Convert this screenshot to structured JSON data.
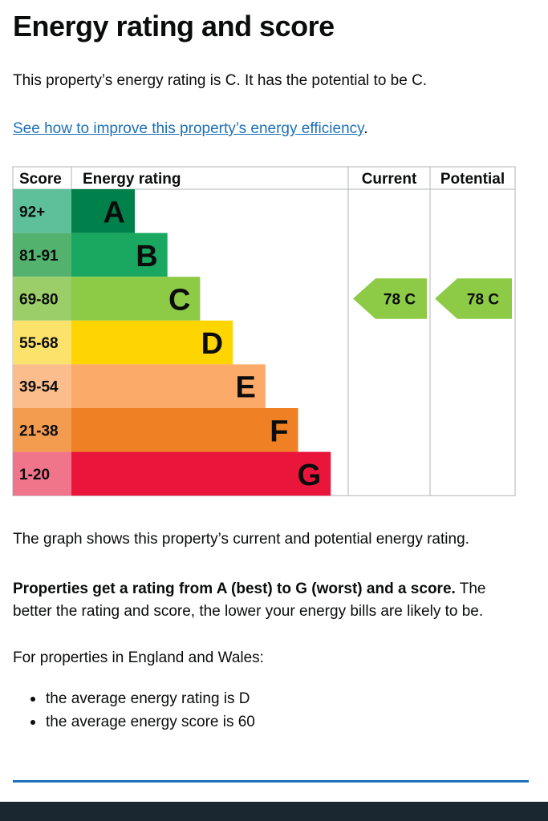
{
  "page": {
    "title": "Energy rating and score",
    "intro": "This property’s energy rating is C. It has the potential to be C.",
    "improve_link": "See how to improve this property’s energy efficiency",
    "improve_suffix": ".",
    "graph_note": "The graph shows this property’s current and potential energy rating.",
    "ratings_bold": "Properties get a rating from A (best) to G (worst) and a score.",
    "ratings_rest": " The better the rating and score, the lower your energy bills are likely to be.",
    "region_note": "For properties in England and Wales:",
    "averages": [
      "the average energy rating is D",
      "the average energy score is 60"
    ]
  },
  "chart_data": {
    "type": "bar",
    "headers": [
      "Score",
      "Energy rating",
      "Current",
      "Potential"
    ],
    "bands": [
      {
        "letter": "A",
        "range": "92+",
        "color": "#00804b",
        "score_color": "#5dc09a"
      },
      {
        "letter": "B",
        "range": "81-91",
        "color": "#1aa860",
        "score_color": "#52b26e"
      },
      {
        "letter": "C",
        "range": "69-80",
        "color": "#8dcb47",
        "score_color": "#9bce68"
      },
      {
        "letter": "D",
        "range": "55-68",
        "color": "#ffd500",
        "score_color": "#fbe26b"
      },
      {
        "letter": "E",
        "range": "39-54",
        "color": "#fbaa6a",
        "score_color": "#fcbd8c"
      },
      {
        "letter": "F",
        "range": "21-38",
        "color": "#ef8023",
        "score_color": "#f39b4f"
      },
      {
        "letter": "G",
        "range": "1-20",
        "color": "#e9153b",
        "score_color": "#f1758a"
      }
    ],
    "current": {
      "score": 78,
      "band": "C",
      "label": "78 C"
    },
    "potential": {
      "score": 78,
      "band": "C",
      "label": "78 C"
    },
    "marker_color": "#8dcb47"
  }
}
